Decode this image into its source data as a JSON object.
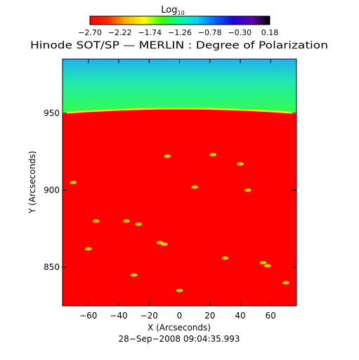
{
  "colorbar": {
    "label_main": "Log",
    "label_sub": "10",
    "tick_labels": [
      "−2.70",
      "−2.22",
      "−1.74",
      "−1.26",
      "−0.78",
      "−0.30",
      "0.18"
    ],
    "range": [
      -2.7,
      0.18
    ],
    "colors": [
      "#ff0000",
      "#ff2a00",
      "#ffb000",
      "#ffff00",
      "#33ff00",
      "#00ff99",
      "#00d0ff",
      "#0060ff",
      "#2000e0",
      "#6000b0",
      "#000000"
    ]
  },
  "chart_data": {
    "type": "heatmap",
    "title": "Hinode SOT/SP — MERLIN : Degree of Polarization",
    "xlabel": "X (Arcseconds)",
    "ylabel": "Y (Arcseconds)",
    "footer": "28−Sep−2008 09:04:35.993",
    "xlim": [
      -77,
      77
    ],
    "ylim": [
      825,
      985
    ],
    "x_ticks": [
      -60,
      -40,
      -20,
      0,
      20,
      40,
      60
    ],
    "y_ticks": [
      850,
      900,
      950
    ],
    "x_tick_labels": [
      "−60",
      "−40",
      "−20",
      "0",
      "20",
      "40",
      "60"
    ],
    "y_tick_labels": [
      "850",
      "900",
      "950"
    ],
    "limb": {
      "y_at_center": 953,
      "y_at_edges": 950
    },
    "colors": {
      "disk": "#ff0000",
      "above_limb_top": "#20b0f0",
      "above_limb_mid": "#20e8b0",
      "above_limb_bottom": "#33ff44",
      "limb_edge": "#e6ff00"
    },
    "regions": [
      {
        "name": "off-limb",
        "log10_degree_of_polarization": -0.9
      },
      {
        "name": "solar disk",
        "log10_degree_of_polarization": -2.7
      }
    ],
    "bright_patches": [
      {
        "x": 22,
        "y": 923
      },
      {
        "x": 40,
        "y": 917
      },
      {
        "x": -8,
        "y": 922
      },
      {
        "x": -35,
        "y": 880
      },
      {
        "x": -27,
        "y": 878
      },
      {
        "x": -13,
        "y": 866
      },
      {
        "x": -10,
        "y": 865
      },
      {
        "x": 55,
        "y": 853
      },
      {
        "x": 58,
        "y": 851
      },
      {
        "x": -30,
        "y": 845
      },
      {
        "x": 30,
        "y": 856
      },
      {
        "x": -55,
        "y": 880
      },
      {
        "x": 45,
        "y": 900
      },
      {
        "x": 10,
        "y": 902
      },
      {
        "x": -60,
        "y": 862
      },
      {
        "x": 70,
        "y": 840
      },
      {
        "x": -70,
        "y": 905
      },
      {
        "x": 0,
        "y": 835
      }
    ]
  }
}
